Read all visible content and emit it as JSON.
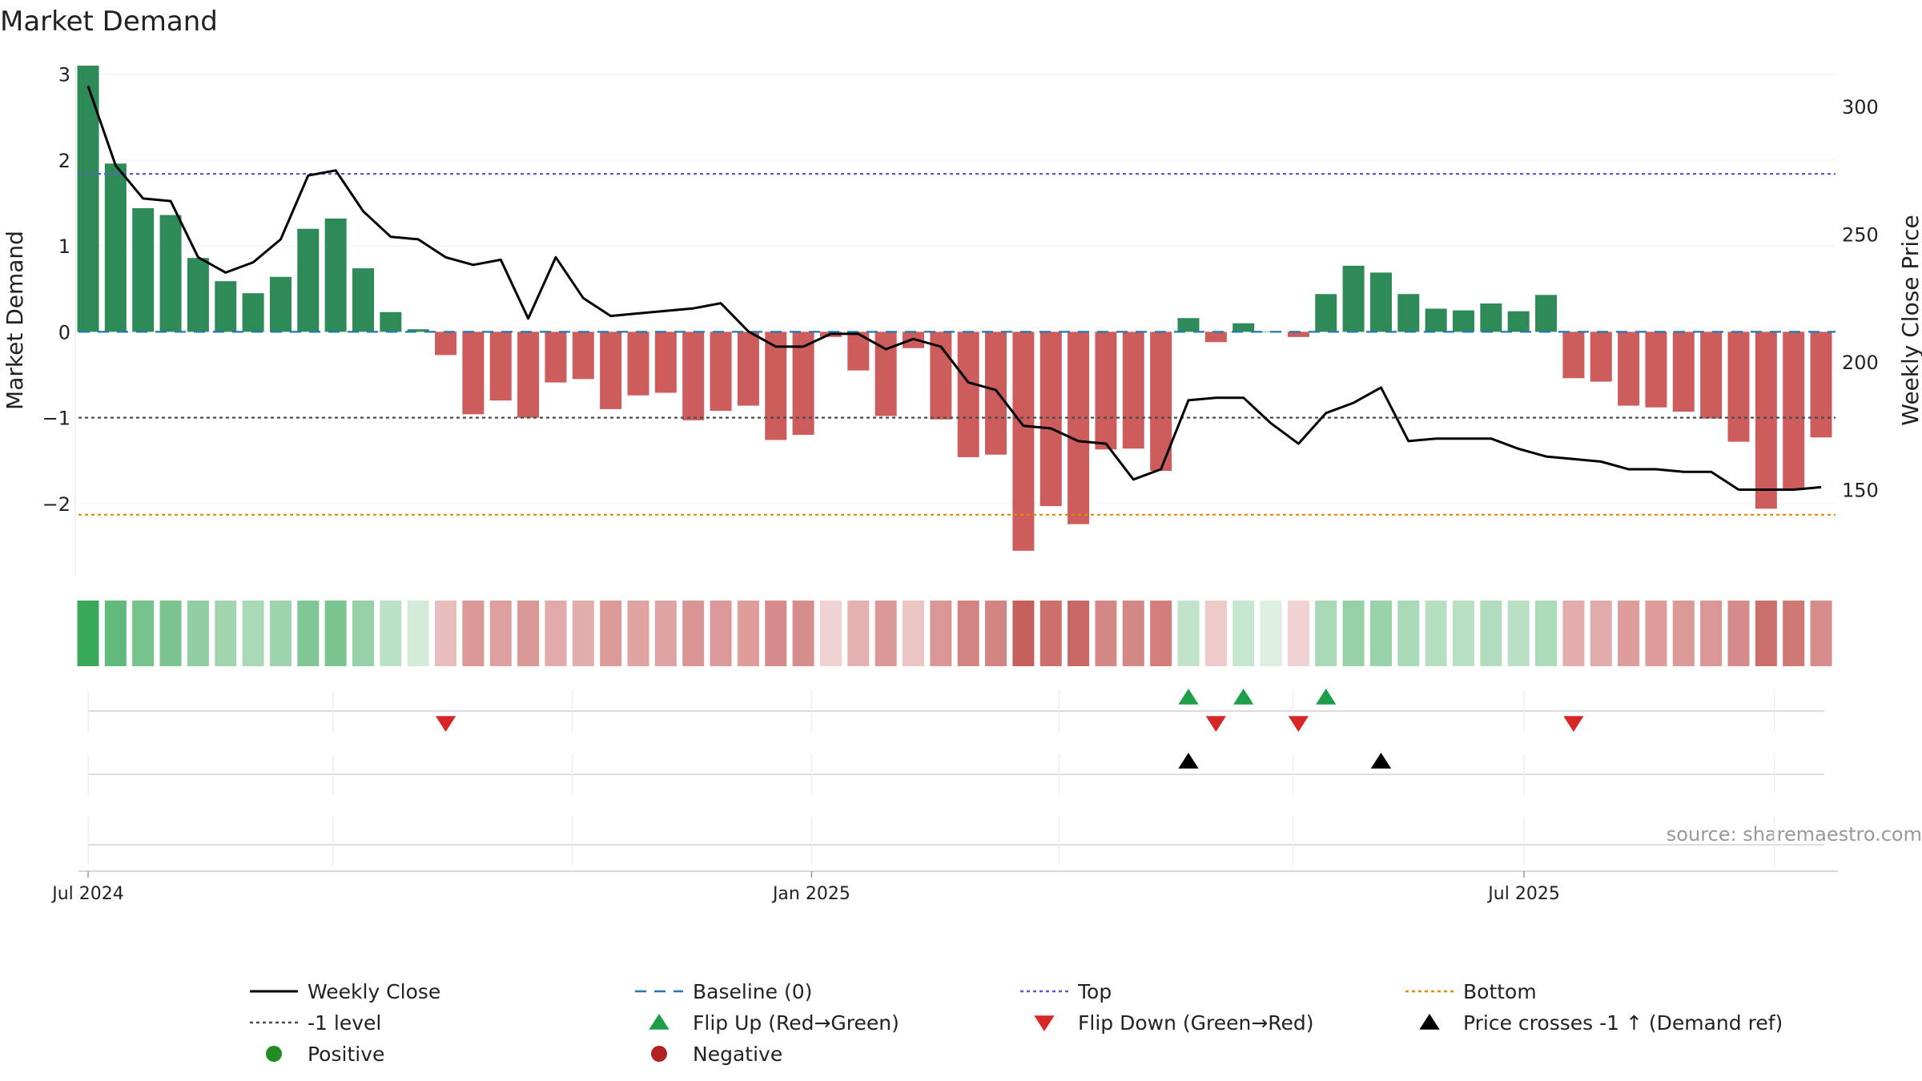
{
  "chart_data": {
    "type": "bar",
    "title": "Market Demand",
    "ylabel_left": "Market Demand",
    "ylabel_right": "Weekly Close Price",
    "ylim_left": [
      -2.85,
      3.1
    ],
    "ylim_right": [
      116,
      316
    ],
    "yticks_left": [
      {
        "v": 3,
        "label": "3"
      },
      {
        "v": 2,
        "label": "2"
      },
      {
        "v": 1,
        "label": "1"
      },
      {
        "v": 0,
        "label": "0"
      },
      {
        "v": -1,
        "label": "−1"
      },
      {
        "v": -2,
        "label": "−2"
      }
    ],
    "yticks_right": [
      {
        "v": 300,
        "label": "300"
      },
      {
        "v": 250,
        "label": "250"
      },
      {
        "v": 200,
        "label": "200"
      },
      {
        "v": 150,
        "label": "150"
      }
    ],
    "x_ticks": [
      {
        "i": 0,
        "label": "Jul 2024"
      },
      {
        "i": 26.3,
        "label": "Jan 2025"
      },
      {
        "i": 52.2,
        "label": "Jul 2025"
      }
    ],
    "minor_ticks": [
      8.9,
      17.6,
      35.3,
      43.8,
      61.3
    ],
    "demand": [
      3.1,
      1.96,
      1.44,
      1.36,
      0.86,
      0.59,
      0.45,
      0.64,
      1.2,
      1.32,
      0.74,
      0.23,
      0.03,
      -0.27,
      -0.96,
      -0.8,
      -1.0,
      -0.59,
      -0.55,
      -0.9,
      -0.74,
      -0.71,
      -1.03,
      -0.92,
      -0.86,
      -1.26,
      -1.2,
      -0.06,
      -0.45,
      -0.98,
      -0.19,
      -1.02,
      -1.46,
      -1.43,
      -2.55,
      -2.03,
      -2.24,
      -1.37,
      -1.36,
      -1.62,
      0.16,
      -0.12,
      0.1,
      0.0,
      -0.06,
      0.44,
      0.77,
      0.69,
      0.44,
      0.27,
      0.25,
      0.33,
      0.24,
      0.43,
      -0.54,
      -0.58,
      -0.86,
      -0.88,
      -0.93,
      -1.01,
      -1.28,
      -2.06,
      -1.83,
      -1.23
    ],
    "price": [
      308,
      277,
      264,
      263,
      241,
      235,
      239,
      248,
      273,
      275,
      259,
      249,
      248,
      241,
      238,
      240,
      217,
      241,
      225,
      218,
      219,
      220,
      221,
      223,
      212,
      206,
      206,
      211,
      211,
      205,
      209,
      206,
      192,
      189,
      175,
      174,
      169,
      168,
      154,
      158,
      185,
      186,
      186,
      176,
      168,
      180,
      184,
      190,
      169,
      170,
      170,
      170,
      166,
      163,
      162,
      161,
      158,
      158,
      157,
      157,
      150,
      150,
      150,
      151
    ],
    "flip_up": [
      40,
      42,
      45
    ],
    "flip_down": [
      13,
      41,
      44,
      54
    ],
    "price_cross_up": [
      40,
      47
    ],
    "ref_lines": {
      "top": 1.84,
      "bottom": -2.13,
      "minus_one": -1,
      "baseline": 0
    },
    "colors": {
      "positive": "#2e8b57",
      "negative": "#cd5c5c",
      "price": "#000000",
      "baseline": "#1f77b4",
      "top": "#5b5bd6",
      "bottom": "#e08a00",
      "minus_one": "#4d4d4d",
      "flip_up": "#1e9e4a",
      "flip_down": "#d62728",
      "cross": "#000000"
    },
    "legend": [
      {
        "label": "Weekly Close",
        "marker": "line",
        "color": "#000000"
      },
      {
        "label": "Baseline (0)",
        "marker": "dash",
        "color": "#1f77b4"
      },
      {
        "label": "Top",
        "marker": "dot",
        "color": "#5b5bd6"
      },
      {
        "label": "Bottom",
        "marker": "dot",
        "color": "#e08a00"
      },
      {
        "label": "-1 level",
        "marker": "dot",
        "color": "#4d4d4d"
      },
      {
        "label": "Flip Up (Red→Green)",
        "marker": "tri-up",
        "color": "#1e9e4a"
      },
      {
        "label": "Flip Down (Green→Red)",
        "marker": "tri-down",
        "color": "#d62728"
      },
      {
        "label": "Price crosses -1 ↑ (Demand ref)",
        "marker": "tri-up",
        "color": "#000000"
      },
      {
        "label": "Positive",
        "marker": "circle",
        "color": "#228b22"
      },
      {
        "label": "Negative",
        "marker": "circle",
        "color": "#b22222"
      }
    ],
    "source": "source: sharemaestro.com"
  }
}
